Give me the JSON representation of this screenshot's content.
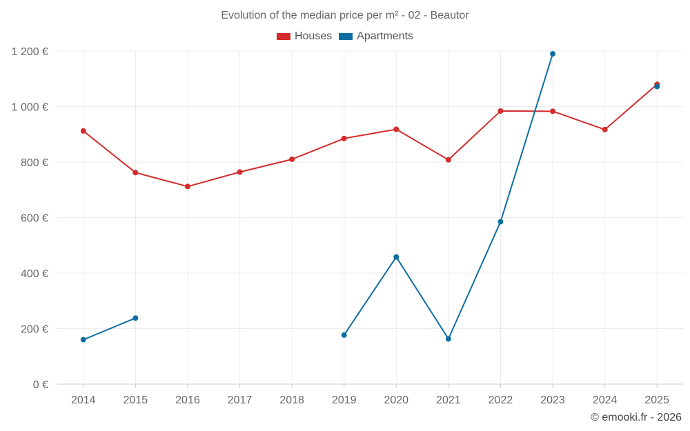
{
  "chart_data": {
    "type": "line",
    "title": "Evolution of the median price per m² - 02 - Beautor",
    "xlabel": "",
    "ylabel": "",
    "categories": [
      "2014",
      "2015",
      "2016",
      "2017",
      "2018",
      "2019",
      "2020",
      "2021",
      "2022",
      "2023",
      "2024",
      "2025"
    ],
    "ylim": [
      0,
      1200
    ],
    "yticks": [
      0,
      200,
      400,
      600,
      800,
      1000,
      1200
    ],
    "ytick_labels": [
      "0 €",
      "200 €",
      "400 €",
      "600 €",
      "800 €",
      "1 000 €",
      "1 200 €"
    ],
    "grid": true,
    "legend_position": "top-center",
    "series": [
      {
        "name": "Houses",
        "color": "#d42b2b",
        "values": [
          912,
          762,
          712,
          764,
          810,
          885,
          918,
          808,
          984,
          983,
          917,
          1080
        ]
      },
      {
        "name": "Apartments",
        "color": "#0d6ea3",
        "values": [
          160,
          238,
          null,
          null,
          null,
          177,
          458,
          163,
          585,
          1190,
          null,
          1072
        ]
      }
    ]
  },
  "credit": "© emooki.fr - 2026"
}
